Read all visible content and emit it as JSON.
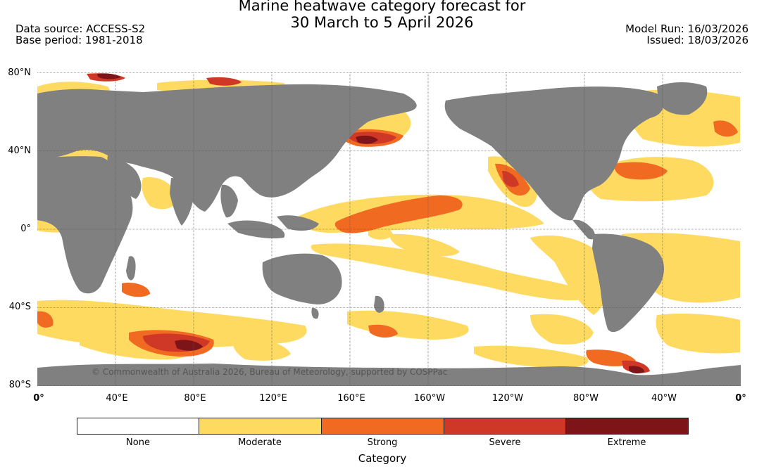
{
  "title_line1": "Marine heatwave category forecast for",
  "title_line2": "30 March to 5 April 2026",
  "data_source": "Data source: ACCESS-S2",
  "base_period": "Base period: 1981-2018",
  "model_run": "Model Run: 16/03/2026",
  "issued": "Issued: 18/03/2026",
  "lat_labels": [
    "80°N",
    "40°N",
    "0°",
    "40°S",
    "80°S"
  ],
  "lon_labels": [
    "0°",
    "40°E",
    "80°E",
    "120°E",
    "160°E",
    "160°W",
    "120°W",
    "80°W",
    "40°W",
    "0°"
  ],
  "copyright": "© Commonwealth of Australia 2026, Bureau of Meteorology, supported by COSPPac",
  "legend_title": "Category",
  "legend": [
    {
      "label": "None",
      "color": "#ffffff"
    },
    {
      "label": "Moderate",
      "color": "#ffda61"
    },
    {
      "label": "Strong",
      "color": "#f16a22"
    },
    {
      "label": "Severe",
      "color": "#cf3726"
    },
    {
      "label": "Extreme",
      "color": "#7d1417"
    }
  ],
  "land_color": "#808080",
  "ocean_color": "#ffffff"
}
